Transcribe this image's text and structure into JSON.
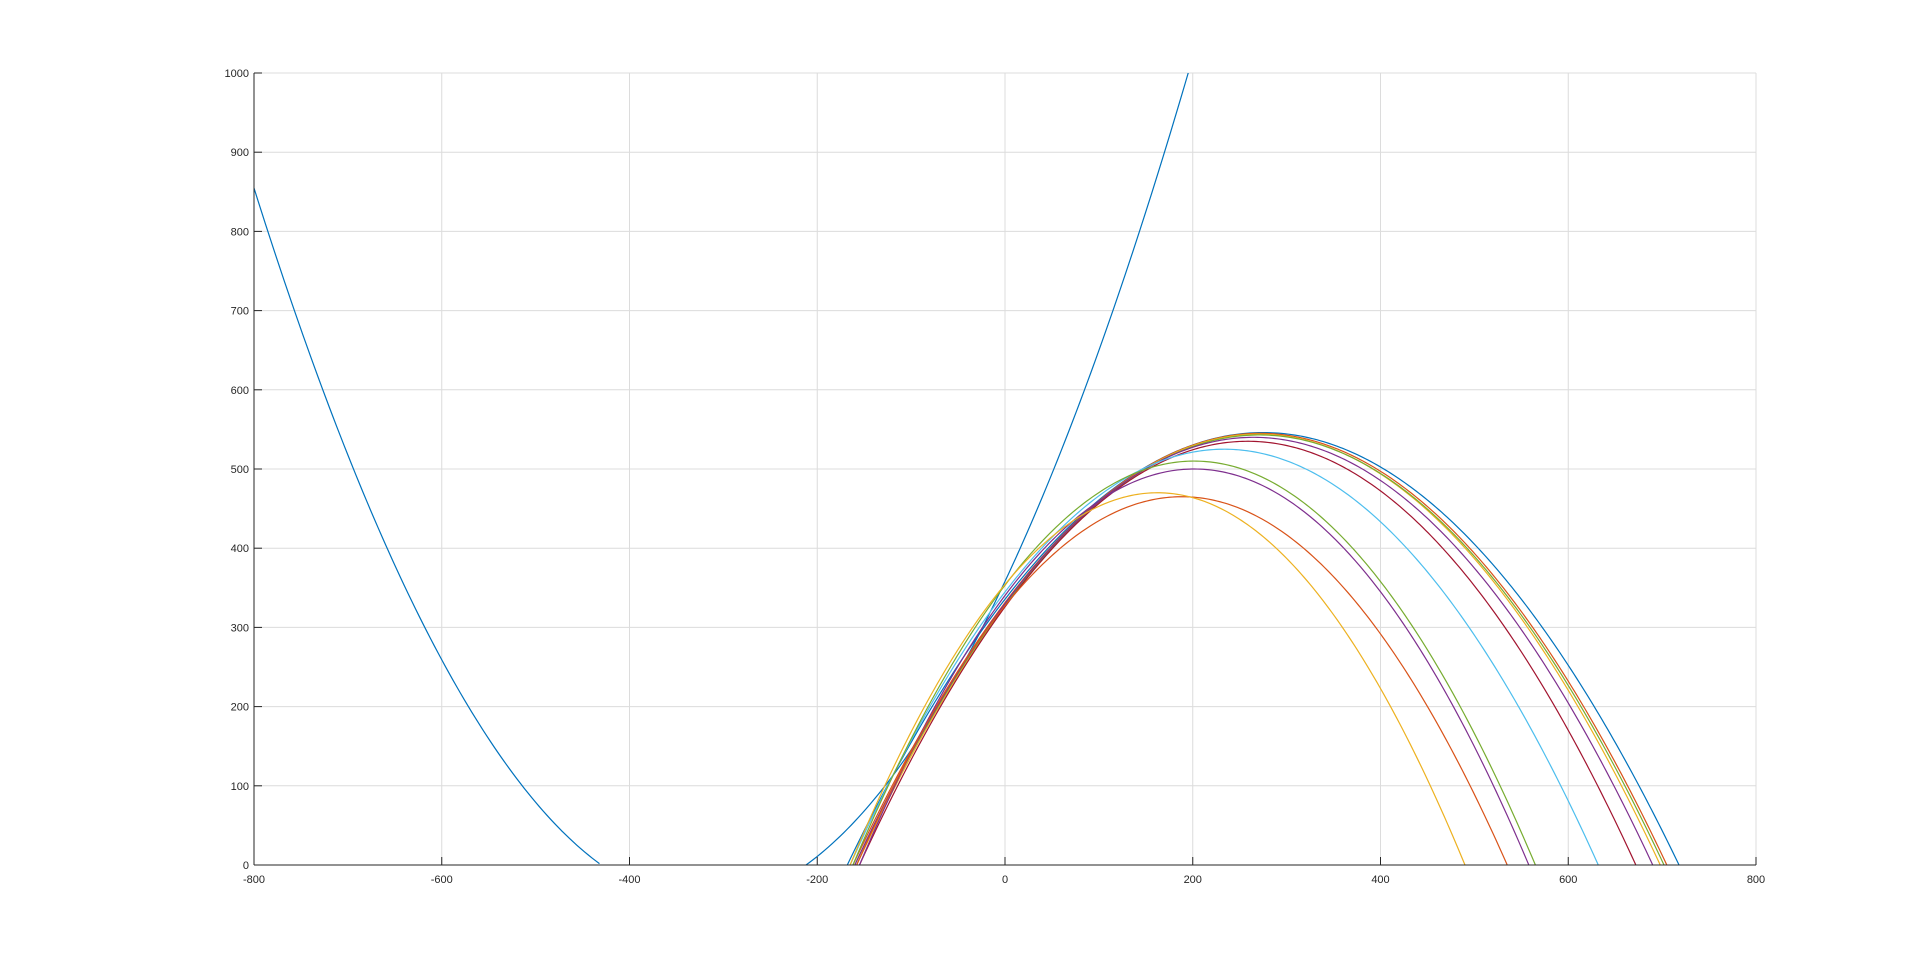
{
  "chart_data": {
    "type": "line",
    "title": "",
    "xlabel": "",
    "ylabel": "",
    "xlim": [
      -800,
      800
    ],
    "ylim": [
      0,
      1000
    ],
    "grid": true,
    "x_ticks": [
      -800,
      -600,
      -400,
      -200,
      0,
      200,
      400,
      600,
      800
    ],
    "y_ticks": [
      0,
      100,
      200,
      300,
      400,
      500,
      600,
      700,
      800,
      900,
      1000
    ],
    "x_tick_labels": [
      "-800",
      "-600",
      "-400",
      "-200",
      "0",
      "200",
      "400",
      "600",
      "800"
    ],
    "y_tick_labels": [
      "0",
      "100",
      "200",
      "300",
      "400",
      "500",
      "600",
      "700",
      "800",
      "900",
      "1000"
    ],
    "series": [
      {
        "color": "#0072BD",
        "vertex": [
          -320,
          -125
        ],
        "x_start": -795,
        "x_end": 195,
        "points": [
          [
            -795,
            836
          ],
          [
            -795,
            836
          ]
        ],
        "roots": [
          -430,
          -212
        ],
        "y_at": {
          "x": -795,
          "y": 836
        }
      },
      {
        "color": "#0072BD",
        "vertex": [
          275,
          546
        ],
        "roots": [
          -168,
          718
        ]
      },
      {
        "color": "#D95319",
        "vertex": [
          272,
          545
        ],
        "roots": [
          -162,
          705
        ]
      },
      {
        "color": "#EDB120",
        "vertex": [
          270,
          544
        ],
        "roots": [
          -158,
          698
        ]
      },
      {
        "color": "#77AC30",
        "vertex": [
          268,
          543
        ],
        "roots": [
          -160,
          702
        ]
      },
      {
        "color": "#7E2F8E",
        "vertex": [
          262,
          540
        ],
        "roots": [
          -160,
          690
        ]
      },
      {
        "color": "#A2142F",
        "vertex": [
          250,
          535
        ],
        "roots": [
          -155,
          672
        ]
      },
      {
        "color": "#4DBEEE",
        "vertex": [
          235,
          525
        ],
        "roots": [
          -165,
          632
        ]
      },
      {
        "color": "#77AC30",
        "vertex": [
          205,
          510
        ],
        "roots": [
          -162,
          565
        ]
      },
      {
        "color": "#7E2F8E",
        "vertex": [
          200,
          500
        ],
        "roots": [
          -155,
          558
        ]
      },
      {
        "color": "#D95319",
        "vertex": [
          185,
          465
        ],
        "roots": [
          -158,
          535
        ]
      },
      {
        "color": "#EDB120",
        "vertex": [
          172,
          470
        ],
        "roots": [
          -165,
          490
        ]
      }
    ]
  }
}
